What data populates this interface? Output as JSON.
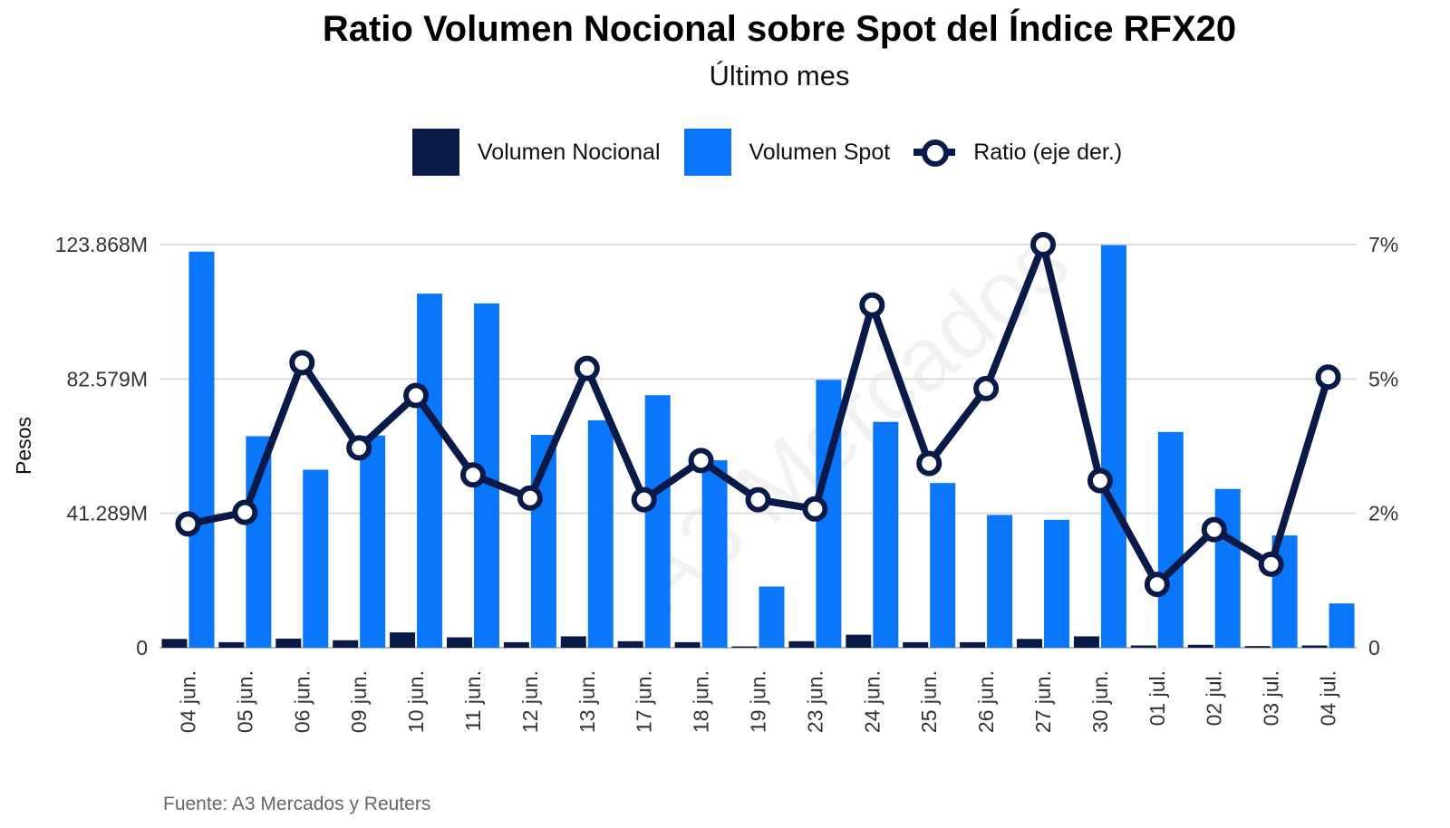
{
  "chart_data": {
    "type": "bar",
    "title": "Ratio Volumen Nocional sobre Spot del Índice RFX20",
    "subtitle": "Último mes",
    "ylabel": "Pesos",
    "source": "Fuente: A3 Mercados y Reuters",
    "watermark": "A3 Mercados",
    "categories": [
      "04 jun.",
      "05 jun.",
      "06 jun.",
      "09 jun.",
      "10 jun.",
      "11 jun.",
      "12 jun.",
      "13 jun.",
      "17 jun.",
      "18 jun.",
      "19 jun.",
      "23 jun.",
      "24 jun.",
      "25 jun.",
      "26 jun.",
      "27 jun.",
      "30 jun.",
      "01 jul.",
      "02 jul.",
      "03 jul.",
      "04 jul."
    ],
    "y_ticks": [
      "0",
      "41.289M",
      "82.579M",
      "123.868M"
    ],
    "y_tick_values": [
      0,
      41289000,
      82579000,
      123868000
    ],
    "ylim": [
      0,
      123868000
    ],
    "y2_ticks": [
      "0",
      "2%",
      "5%",
      "7%"
    ],
    "y2_tick_values": [
      0,
      2.3333,
      4.6667,
      7
    ],
    "y2lim": [
      0,
      7
    ],
    "grid": true,
    "legend_position": "top-center",
    "series": [
      {
        "name": "Volumen Nocional",
        "kind": "bar",
        "axis": "left",
        "color": "#0a1a48",
        "values": [
          2700000,
          1700000,
          2800000,
          2300000,
          4700000,
          3200000,
          1700000,
          3500000,
          2000000,
          1700000,
          400000,
          2000000,
          4000000,
          1700000,
          1700000,
          2700000,
          3500000,
          700000,
          900000,
          500000,
          700000
        ]
      },
      {
        "name": "Volumen Spot",
        "kind": "bar",
        "axis": "left",
        "color": "#0a76fa",
        "values": [
          121700000,
          65000000,
          54700000,
          65200000,
          108800000,
          105800000,
          65400000,
          69900000,
          77600000,
          57600000,
          18800000,
          82300000,
          69400000,
          50600000,
          40800000,
          39300000,
          123700000,
          66300000,
          48800000,
          34500000,
          13600000
        ]
      },
      {
        "name": "Ratio (eje der.)",
        "kind": "line",
        "axis": "right",
        "color": "#0a1a48",
        "values": [
          2.15,
          2.35,
          4.95,
          3.47,
          4.38,
          3.0,
          2.6,
          4.85,
          2.57,
          3.25,
          2.57,
          2.41,
          5.95,
          3.2,
          4.5,
          7.0,
          2.9,
          1.1,
          2.05,
          1.45,
          4.7
        ]
      }
    ]
  }
}
